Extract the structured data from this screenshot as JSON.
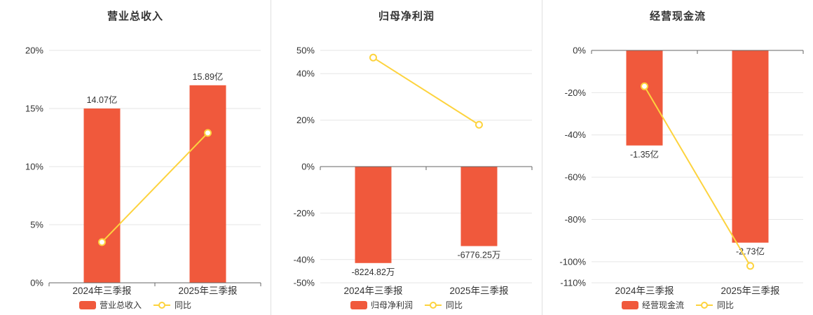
{
  "style": {
    "bar_color": "#f0593c",
    "line_color": "#fdd33e",
    "grid_color": "#e6e6e6",
    "axis_color": "#666666",
    "text_color": "#333333",
    "divider_color": "#e0e0e0",
    "background": "#ffffff"
  },
  "chart_data": [
    {
      "type": "bar",
      "title": "营业总收入",
      "categories": [
        "2024年三季报",
        "2025年三季报"
      ],
      "ylim": [
        0,
        20
      ],
      "yticks": [
        20,
        15,
        10,
        5,
        0
      ],
      "grid": true,
      "legend_position": "bottom",
      "bar_series": {
        "name": "营业总收入",
        "labels": [
          "14.07亿",
          "15.89亿"
        ],
        "values_pct": [
          15.0,
          17.0
        ]
      },
      "line_series": {
        "name": "同比",
        "values_pct": [
          3.5,
          12.9
        ]
      }
    },
    {
      "type": "bar",
      "title": "归母净利润",
      "categories": [
        "2024年三季报",
        "2025年三季报"
      ],
      "ylim": [
        -50,
        50
      ],
      "yticks": [
        50,
        40,
        20,
        0,
        -20,
        -40,
        -50
      ],
      "grid": true,
      "legend_position": "bottom",
      "bar_series": {
        "name": "归母净利润",
        "labels": [
          "-8224.82万",
          "-6776.25万"
        ],
        "values_pct": [
          -41.5,
          -34.2
        ]
      },
      "line_series": {
        "name": "同比",
        "values_pct": [
          46.9,
          18.0
        ]
      }
    },
    {
      "type": "bar",
      "title": "经营现金流",
      "categories": [
        "2024年三季报",
        "2025年三季报"
      ],
      "ylim": [
        -110,
        0
      ],
      "yticks": [
        0,
        -20,
        -40,
        -60,
        -80,
        -100,
        -110
      ],
      "grid": true,
      "legend_position": "bottom",
      "bar_series": {
        "name": "经营现金流",
        "labels": [
          "-1.35亿",
          "-2.73亿"
        ],
        "values_pct": [
          -45,
          -91
        ]
      },
      "line_series": {
        "name": "同比",
        "values_pct": [
          -17,
          -102
        ]
      }
    }
  ]
}
